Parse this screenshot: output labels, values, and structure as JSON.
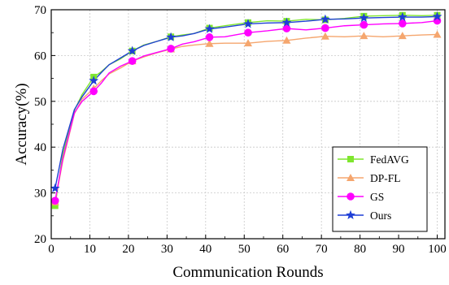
{
  "chart_data": {
    "type": "line",
    "xlabel": "Communication Rounds",
    "ylabel": "Accuracy(%)",
    "xlim": [
      0,
      102
    ],
    "ylim": [
      20,
      70
    ],
    "xticks": [
      0,
      10,
      20,
      30,
      40,
      50,
      60,
      70,
      80,
      90,
      100
    ],
    "yticks": [
      20,
      30,
      40,
      50,
      60,
      70
    ],
    "grid": true,
    "legend_position": "bottom-right",
    "marker_x": [
      1,
      11,
      21,
      31,
      41,
      51,
      61,
      71,
      81,
      91,
      100
    ],
    "x": [
      1,
      3,
      6,
      8,
      11,
      13,
      15,
      18,
      21,
      24,
      27,
      31,
      34,
      37,
      41,
      45,
      51,
      56,
      61,
      66,
      71,
      76,
      81,
      86,
      91,
      96,
      100
    ],
    "series": [
      {
        "name": "FedAVG",
        "color": "#7fe62e",
        "marker": "square",
        "values": [
          27.2,
          38.5,
          48.0,
          51.5,
          55.3,
          56.5,
          58.0,
          59.3,
          61.0,
          62.3,
          63.0,
          64.1,
          64.5,
          64.8,
          66.0,
          66.5,
          67.2,
          67.6,
          67.5,
          67.9,
          67.8,
          68.1,
          68.6,
          68.7,
          68.8,
          68.7,
          68.8
        ]
      },
      {
        "name": "DP-FL",
        "color": "#f5a66e",
        "marker": "triangle",
        "values": [
          28.0,
          37.0,
          47.3,
          50.5,
          52.8,
          54.5,
          56.0,
          57.3,
          58.8,
          59.7,
          60.5,
          61.4,
          62.0,
          62.3,
          62.6,
          62.7,
          62.7,
          63.1,
          63.3,
          63.8,
          64.2,
          64.1,
          64.3,
          64.1,
          64.3,
          64.5,
          64.6
        ]
      },
      {
        "name": "GS",
        "color": "#ff00ff",
        "marker": "circle",
        "values": [
          28.3,
          37.5,
          47.5,
          50.0,
          52.2,
          54.0,
          56.2,
          57.7,
          58.8,
          59.9,
          60.6,
          61.5,
          62.5,
          63.0,
          64.0,
          64.1,
          65.0,
          65.4,
          65.9,
          65.6,
          66.0,
          66.5,
          66.7,
          66.9,
          67.0,
          67.2,
          67.6
        ]
      },
      {
        "name": "Ours",
        "color": "#1f3fd6",
        "marker": "star",
        "values": [
          31.0,
          39.5,
          48.2,
          51.0,
          54.5,
          56.3,
          58.0,
          59.5,
          61.0,
          62.2,
          63.0,
          64.0,
          64.3,
          64.8,
          65.8,
          66.2,
          66.9,
          67.1,
          67.2,
          67.5,
          67.9,
          68.0,
          68.2,
          68.3,
          68.4,
          68.4,
          68.5
        ]
      }
    ]
  }
}
